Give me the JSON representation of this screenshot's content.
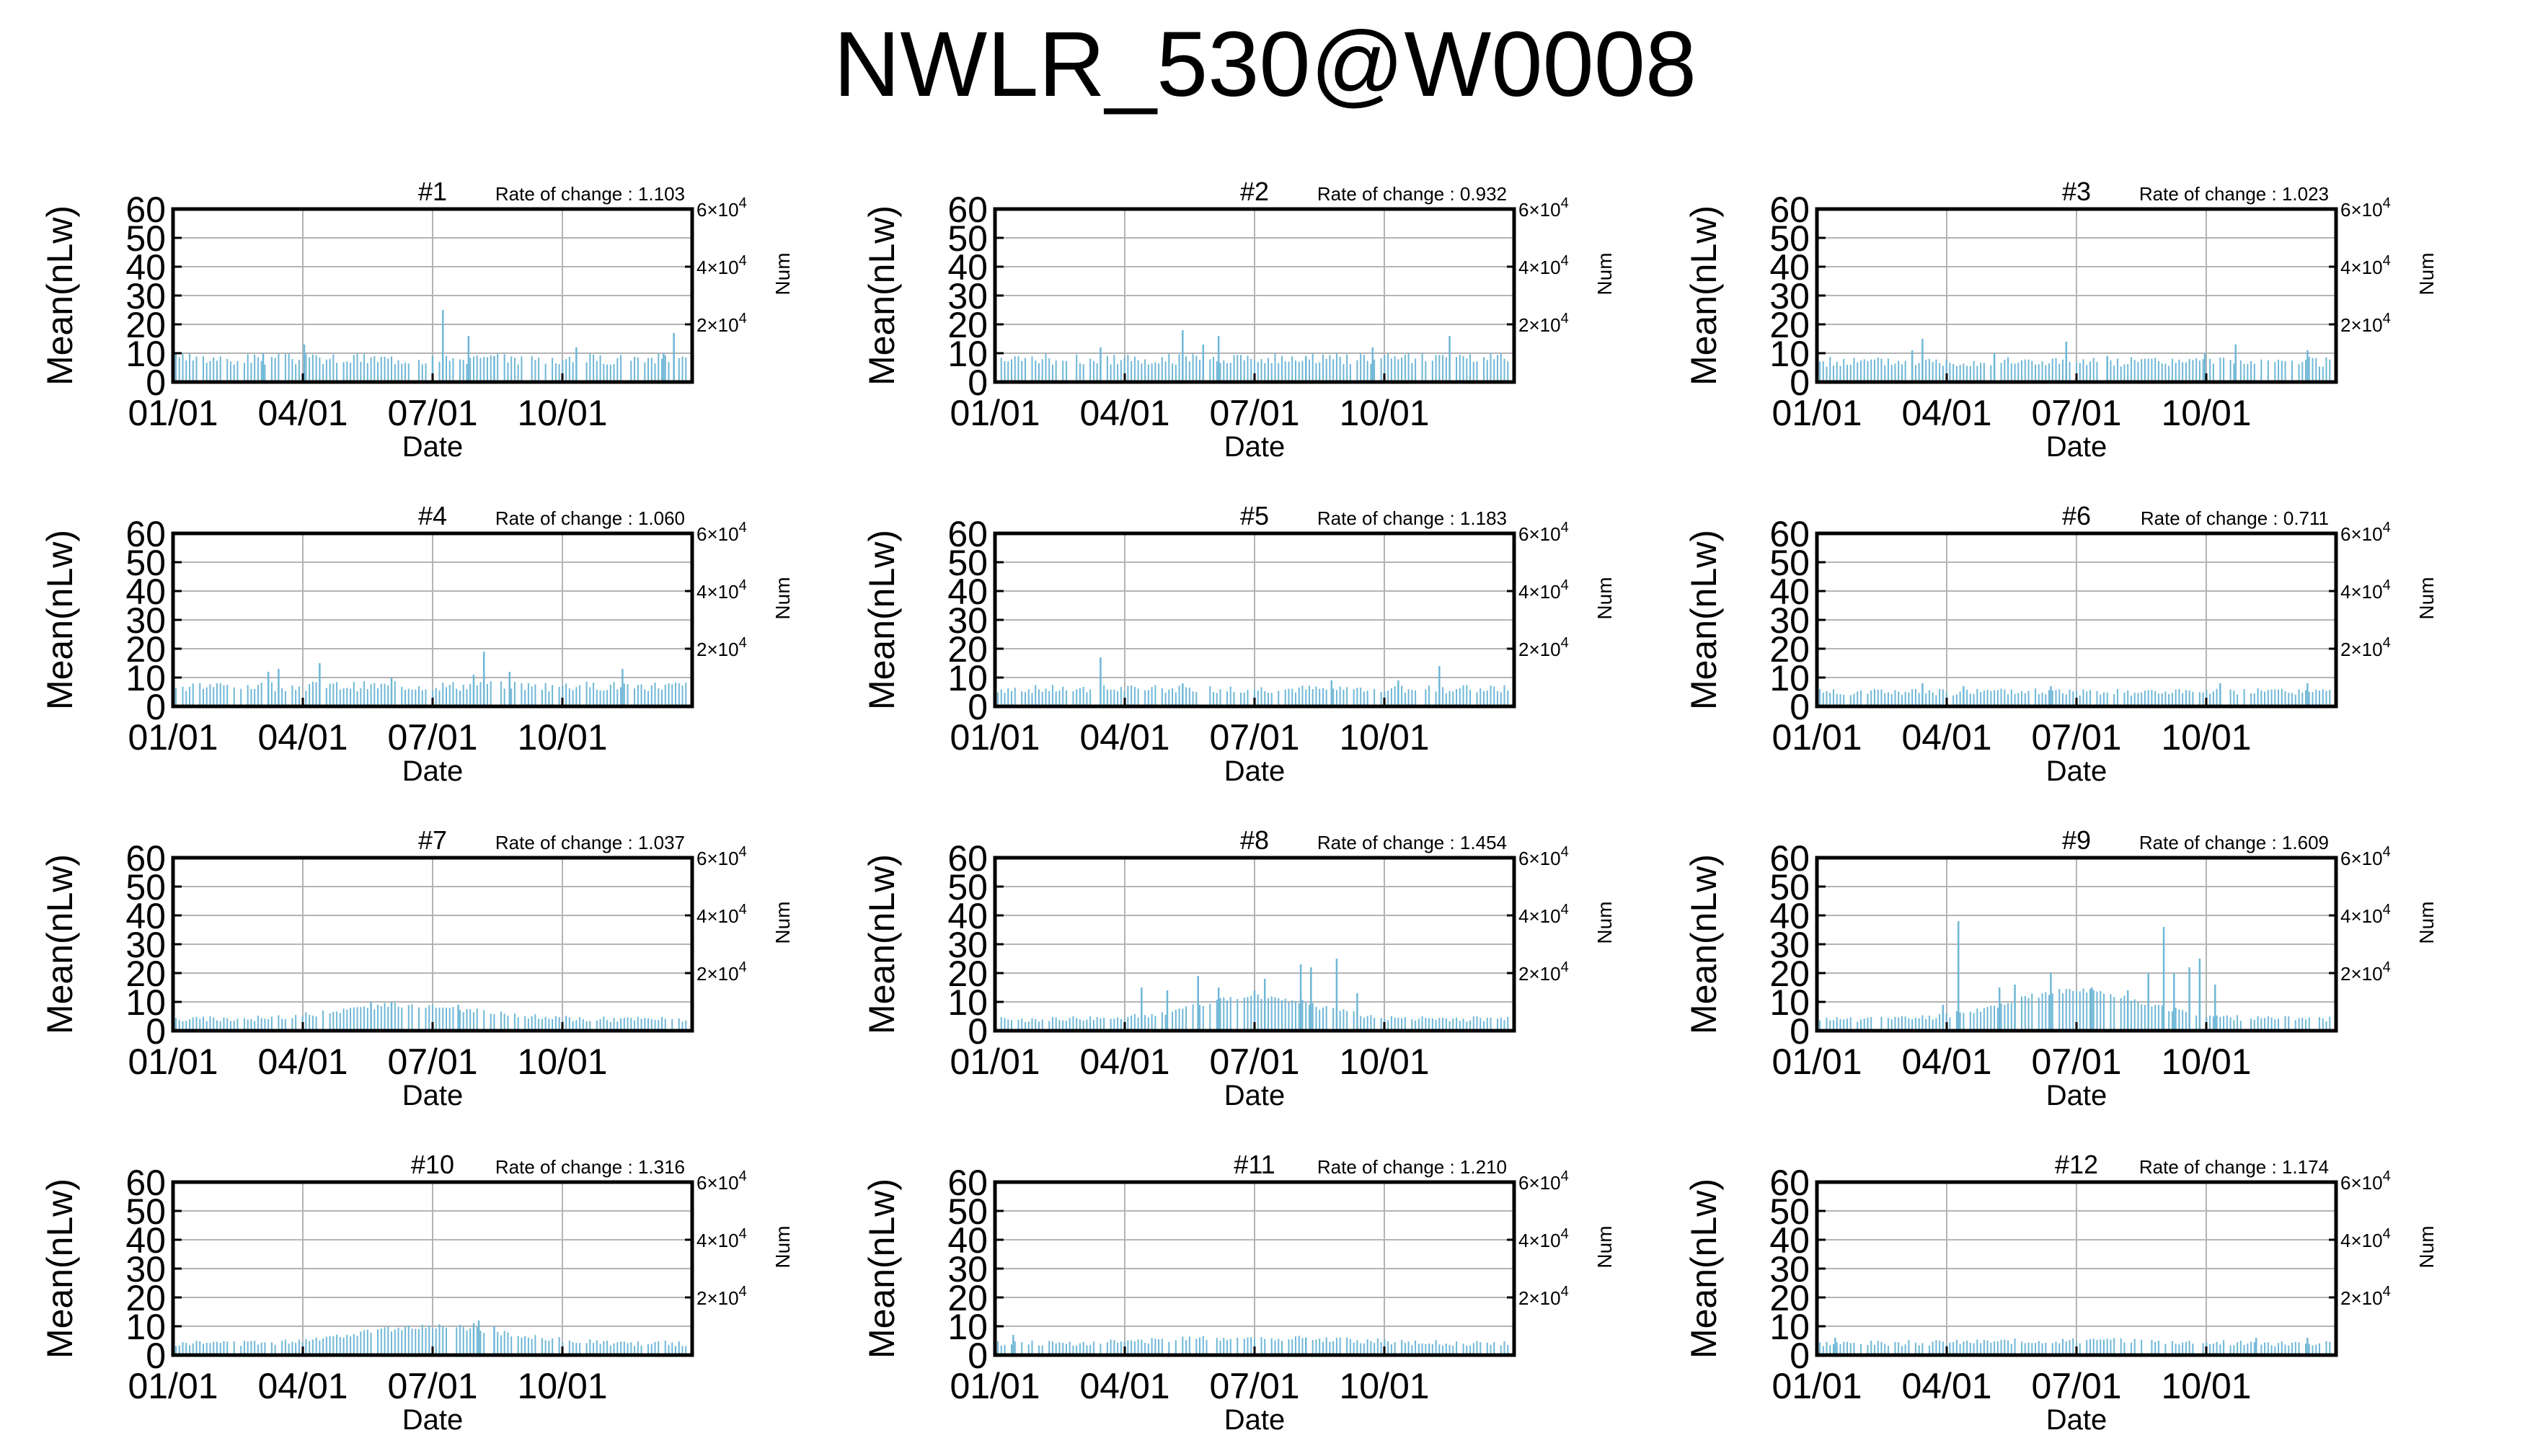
{
  "title": "NWLR_530@W0008",
  "colors": {
    "series": "#6fb7d6",
    "grid": "#b4b4b4",
    "frame": "#000000"
  },
  "chart_data": [
    {
      "type": "bar",
      "panel": "#1",
      "rate_label": "Rate of change : 1.103",
      "xlabel": "Date",
      "ylabel": "Mean(nLw)",
      "y2label": "Num",
      "ylim": [
        0,
        60
      ],
      "yticks": [
        "0",
        "10",
        "20",
        "30",
        "40",
        "50",
        "60"
      ],
      "xticks": [
        "01/01",
        "04/01",
        "07/01",
        "10/01"
      ],
      "y2ticks": [
        {
          "value": 20000,
          "mantissa": "2",
          "exp": "4"
        },
        {
          "value": 40000,
          "mantissa": "4",
          "exp": "4"
        },
        {
          "value": 60000,
          "mantissa": "6",
          "exp": "4"
        }
      ],
      "grid": true,
      "base": 8,
      "spikes": [
        [
          0.17,
          10
        ],
        [
          0.25,
          13
        ],
        [
          0.5,
          9
        ],
        [
          0.52,
          25
        ],
        [
          0.57,
          16
        ],
        [
          0.62,
          9
        ],
        [
          0.78,
          12
        ],
        [
          0.95,
          10
        ],
        [
          0.97,
          17
        ]
      ]
    },
    {
      "type": "bar",
      "panel": "#2",
      "rate_label": "Rate of change : 0.932",
      "xlabel": "Date",
      "ylabel": "Mean(nLw)",
      "y2label": "Num",
      "ylim": [
        0,
        60
      ],
      "yticks": [
        "0",
        "10",
        "20",
        "30",
        "40",
        "50",
        "60"
      ],
      "xticks": [
        "01/01",
        "04/01",
        "07/01",
        "10/01"
      ],
      "y2ticks": [
        {
          "value": 20000,
          "mantissa": "2",
          "exp": "4"
        },
        {
          "value": 40000,
          "mantissa": "4",
          "exp": "4"
        },
        {
          "value": 60000,
          "mantissa": "6",
          "exp": "4"
        }
      ],
      "grid": true,
      "base": 8,
      "spikes": [
        [
          0.2,
          12
        ],
        [
          0.36,
          18
        ],
        [
          0.4,
          13
        ],
        [
          0.43,
          16
        ],
        [
          0.6,
          9
        ],
        [
          0.73,
          12
        ],
        [
          0.88,
          16
        ]
      ]
    },
    {
      "type": "bar",
      "panel": "#3",
      "rate_label": "Rate of change : 1.023",
      "xlabel": "Date",
      "ylabel": "Mean(nLw)",
      "y2label": "Num",
      "ylim": [
        0,
        60
      ],
      "yticks": [
        "0",
        "10",
        "20",
        "30",
        "40",
        "50",
        "60"
      ],
      "xticks": [
        "01/01",
        "04/01",
        "07/01",
        "10/01"
      ],
      "y2ticks": [
        {
          "value": 20000,
          "mantissa": "2",
          "exp": "4"
        },
        {
          "value": 40000,
          "mantissa": "4",
          "exp": "4"
        },
        {
          "value": 60000,
          "mantissa": "6",
          "exp": "4"
        }
      ],
      "grid": true,
      "base": 7,
      "spikes": [
        [
          0.18,
          11
        ],
        [
          0.2,
          15
        ],
        [
          0.34,
          10
        ],
        [
          0.48,
          14
        ],
        [
          0.56,
          9
        ],
        [
          0.75,
          10
        ],
        [
          0.81,
          13
        ],
        [
          0.95,
          11
        ]
      ]
    },
    {
      "type": "bar",
      "panel": "#4",
      "rate_label": "Rate of change : 1.060",
      "xlabel": "Date",
      "ylabel": "Mean(nLw)",
      "y2label": "Num",
      "ylim": [
        0,
        60
      ],
      "yticks": [
        "0",
        "10",
        "20",
        "30",
        "40",
        "50",
        "60"
      ],
      "xticks": [
        "01/01",
        "04/01",
        "07/01",
        "10/01"
      ],
      "y2ticks": [
        {
          "value": 20000,
          "mantissa": "2",
          "exp": "4"
        },
        {
          "value": 40000,
          "mantissa": "4",
          "exp": "4"
        },
        {
          "value": 60000,
          "mantissa": "6",
          "exp": "4"
        }
      ],
      "grid": true,
      "base": 7,
      "spikes": [
        [
          0.18,
          12
        ],
        [
          0.2,
          13
        ],
        [
          0.28,
          15
        ],
        [
          0.42,
          10
        ],
        [
          0.58,
          11
        ],
        [
          0.6,
          19
        ],
        [
          0.65,
          12
        ],
        [
          0.87,
          13
        ]
      ]
    },
    {
      "type": "bar",
      "panel": "#5",
      "rate_label": "Rate of change : 1.183",
      "xlabel": "Date",
      "ylabel": "Mean(nLw)",
      "y2label": "Num",
      "ylim": [
        0,
        60
      ],
      "yticks": [
        "0",
        "10",
        "20",
        "30",
        "40",
        "50",
        "60"
      ],
      "xticks": [
        "01/01",
        "04/01",
        "07/01",
        "10/01"
      ],
      "y2ticks": [
        {
          "value": 20000,
          "mantissa": "2",
          "exp": "4"
        },
        {
          "value": 40000,
          "mantissa": "4",
          "exp": "4"
        },
        {
          "value": 60000,
          "mantissa": "6",
          "exp": "4"
        }
      ],
      "grid": true,
      "base": 6,
      "spikes": [
        [
          0.2,
          17
        ],
        [
          0.36,
          8
        ],
        [
          0.65,
          9
        ],
        [
          0.78,
          9
        ],
        [
          0.86,
          14
        ]
      ]
    },
    {
      "type": "bar",
      "panel": "#6",
      "rate_label": "Rate of change : 0.711",
      "xlabel": "Date",
      "ylabel": "Mean(nLw)",
      "y2label": "Num",
      "ylim": [
        0,
        60
      ],
      "yticks": [
        "0",
        "10",
        "20",
        "30",
        "40",
        "50",
        "60"
      ],
      "xticks": [
        "01/01",
        "04/01",
        "07/01",
        "10/01"
      ],
      "y2ticks": [
        {
          "value": 20000,
          "mantissa": "2",
          "exp": "4"
        },
        {
          "value": 40000,
          "mantissa": "4",
          "exp": "4"
        },
        {
          "value": 60000,
          "mantissa": "6",
          "exp": "4"
        }
      ],
      "grid": true,
      "base": 5,
      "spikes": [
        [
          0.2,
          8
        ],
        [
          0.28,
          7
        ],
        [
          0.45,
          7
        ],
        [
          0.78,
          8
        ],
        [
          0.95,
          8
        ]
      ]
    },
    {
      "type": "bar",
      "panel": "#7",
      "rate_label": "Rate of change : 1.037",
      "xlabel": "Date",
      "ylabel": "Mean(nLw)",
      "y2label": "Num",
      "ylim": [
        0,
        60
      ],
      "yticks": [
        "0",
        "10",
        "20",
        "30",
        "40",
        "50",
        "60"
      ],
      "xticks": [
        "01/01",
        "04/01",
        "07/01",
        "10/01"
      ],
      "y2ticks": [
        {
          "value": 20000,
          "mantissa": "2",
          "exp": "4"
        },
        {
          "value": 40000,
          "mantissa": "4",
          "exp": "4"
        },
        {
          "value": 60000,
          "mantissa": "6",
          "exp": "4"
        }
      ],
      "grid": true,
      "base": 4,
      "hump": [
        0.45,
        0.18,
        5
      ],
      "spikes": [
        [
          0.38,
          10
        ],
        [
          0.42,
          10
        ],
        [
          0.55,
          9
        ]
      ]
    },
    {
      "type": "bar",
      "panel": "#8",
      "rate_label": "Rate of change : 1.454",
      "xlabel": "Date",
      "ylabel": "Mean(nLw)",
      "y2label": "Num",
      "ylim": [
        0,
        60
      ],
      "yticks": [
        "0",
        "10",
        "20",
        "30",
        "40",
        "50",
        "60"
      ],
      "xticks": [
        "01/01",
        "04/01",
        "07/01",
        "10/01"
      ],
      "y2ticks": [
        {
          "value": 20000,
          "mantissa": "2",
          "exp": "4"
        },
        {
          "value": 40000,
          "mantissa": "4",
          "exp": "4"
        },
        {
          "value": 60000,
          "mantissa": "6",
          "exp": "4"
        }
      ],
      "grid": true,
      "base": 4,
      "hump": [
        0.5,
        0.16,
        8
      ],
      "spikes": [
        [
          0.28,
          15
        ],
        [
          0.33,
          14
        ],
        [
          0.39,
          19
        ],
        [
          0.43,
          15
        ],
        [
          0.5,
          14
        ],
        [
          0.52,
          18
        ],
        [
          0.59,
          23
        ],
        [
          0.61,
          22
        ],
        [
          0.66,
          25
        ],
        [
          0.7,
          13
        ]
      ]
    },
    {
      "type": "bar",
      "panel": "#9",
      "rate_label": "Rate of change : 1.609",
      "xlabel": "Date",
      "ylabel": "Mean(nLw)",
      "y2label": "Num",
      "ylim": [
        0,
        60
      ],
      "yticks": [
        "0",
        "10",
        "20",
        "30",
        "40",
        "50",
        "60"
      ],
      "xticks": [
        "01/01",
        "04/01",
        "07/01",
        "10/01"
      ],
      "y2ticks": [
        {
          "value": 20000,
          "mantissa": "2",
          "exp": "4"
        },
        {
          "value": 40000,
          "mantissa": "4",
          "exp": "4"
        },
        {
          "value": 60000,
          "mantissa": "6",
          "exp": "4"
        }
      ],
      "grid": true,
      "base": 4,
      "hump": [
        0.5,
        0.18,
        10
      ],
      "spikes": [
        [
          0.24,
          9
        ],
        [
          0.27,
          38
        ],
        [
          0.35,
          15
        ],
        [
          0.38,
          16
        ],
        [
          0.45,
          20
        ],
        [
          0.53,
          15
        ],
        [
          0.6,
          14
        ],
        [
          0.64,
          20
        ],
        [
          0.67,
          36
        ],
        [
          0.69,
          20
        ],
        [
          0.72,
          22
        ],
        [
          0.74,
          25
        ],
        [
          0.77,
          16
        ]
      ]
    },
    {
      "type": "bar",
      "panel": "#10",
      "rate_label": "Rate of change : 1.316",
      "xlabel": "Date",
      "ylabel": "Mean(nLw)",
      "y2label": "Num",
      "ylim": [
        0,
        60
      ],
      "yticks": [
        "0",
        "10",
        "20",
        "30",
        "40",
        "50",
        "60"
      ],
      "xticks": [
        "01/01",
        "04/01",
        "07/01",
        "10/01"
      ],
      "y2ticks": [
        {
          "value": 20000,
          "mantissa": "2",
          "exp": "4"
        },
        {
          "value": 40000,
          "mantissa": "4",
          "exp": "4"
        },
        {
          "value": 60000,
          "mantissa": "6",
          "exp": "4"
        }
      ],
      "grid": true,
      "base": 4,
      "hump": [
        0.5,
        0.2,
        6
      ],
      "spikes": [
        [
          0.58,
          11
        ],
        [
          0.59,
          12
        ],
        [
          0.62,
          10
        ]
      ]
    },
    {
      "type": "bar",
      "panel": "#11",
      "rate_label": "Rate of change : 1.210",
      "xlabel": "Date",
      "ylabel": "Mean(nLw)",
      "y2label": "Num",
      "ylim": [
        0,
        60
      ],
      "yticks": [
        "0",
        "10",
        "20",
        "30",
        "40",
        "50",
        "60"
      ],
      "xticks": [
        "01/01",
        "04/01",
        "07/01",
        "10/01"
      ],
      "y2ticks": [
        {
          "value": 20000,
          "mantissa": "2",
          "exp": "4"
        },
        {
          "value": 40000,
          "mantissa": "4",
          "exp": "4"
        },
        {
          "value": 60000,
          "mantissa": "6",
          "exp": "4"
        }
      ],
      "grid": true,
      "base": 4,
      "hump": [
        0.5,
        0.25,
        2
      ],
      "spikes": [
        [
          0.03,
          7
        ],
        [
          0.6,
          6
        ]
      ]
    },
    {
      "type": "bar",
      "panel": "#12",
      "rate_label": "Rate of change : 1.174",
      "xlabel": "Date",
      "ylabel": "Mean(nLw)",
      "y2label": "Num",
      "ylim": [
        0,
        60
      ],
      "yticks": [
        "0",
        "10",
        "20",
        "30",
        "40",
        "50",
        "60"
      ],
      "xticks": [
        "01/01",
        "04/01",
        "07/01",
        "10/01"
      ],
      "y2ticks": [
        {
          "value": 20000,
          "mantissa": "2",
          "exp": "4"
        },
        {
          "value": 40000,
          "mantissa": "4",
          "exp": "4"
        },
        {
          "value": 60000,
          "mantissa": "6",
          "exp": "4"
        }
      ],
      "grid": true,
      "base": 4,
      "hump": [
        0.5,
        0.25,
        1
      ],
      "spikes": [
        [
          0.03,
          6
        ],
        [
          0.85,
          6
        ],
        [
          0.95,
          6
        ]
      ]
    }
  ]
}
